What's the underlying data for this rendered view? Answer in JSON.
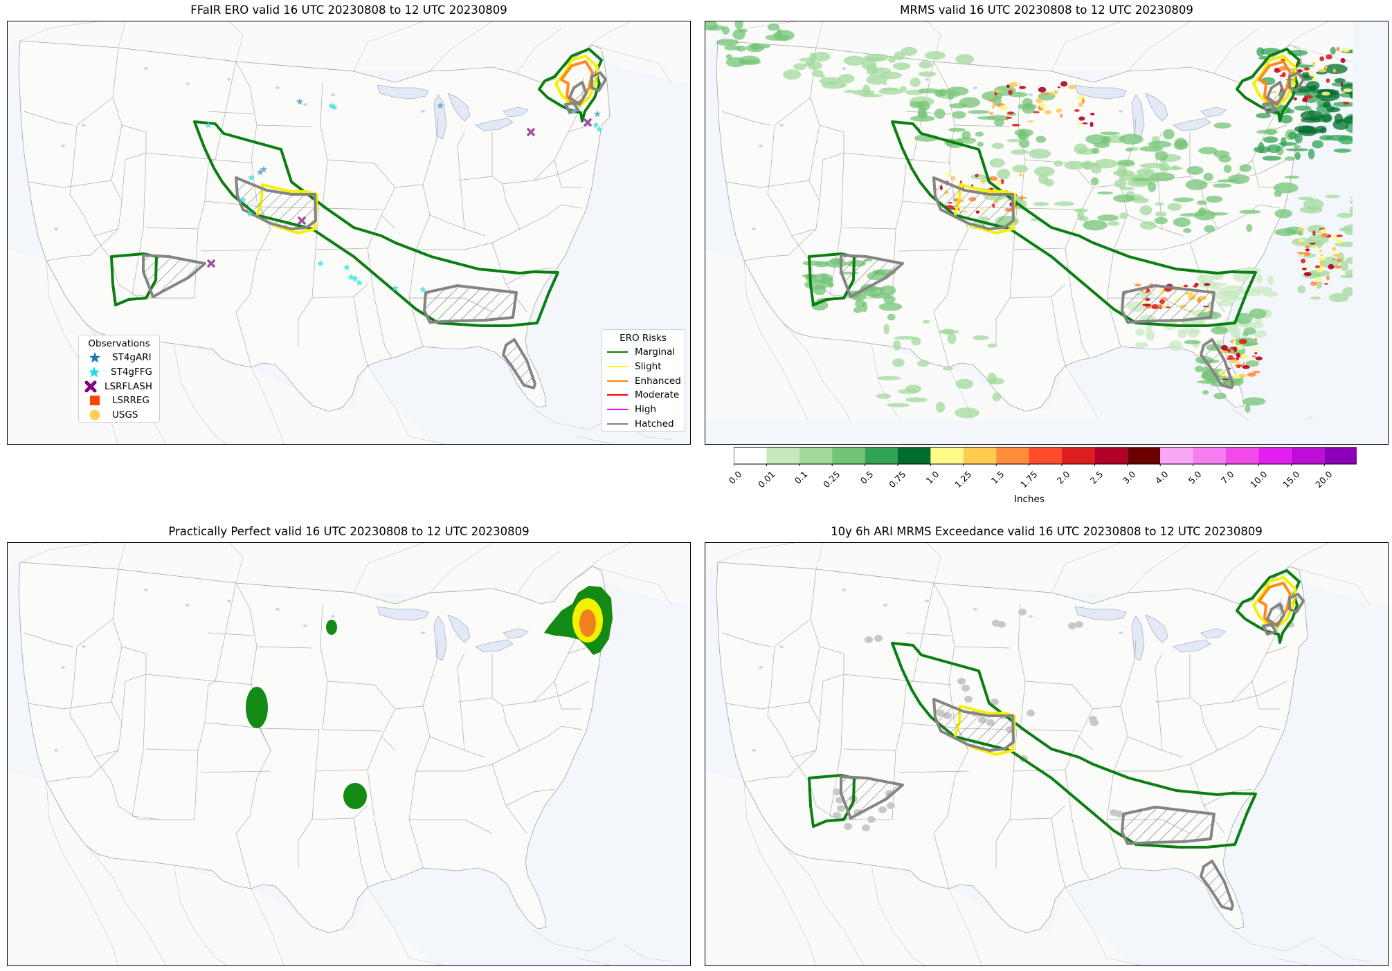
{
  "panels": [
    {
      "id": "ero",
      "title": "FFaIR ERO valid 16 UTC 20230808 to 12 UTC 20230809"
    },
    {
      "id": "mrms",
      "title": "MRMS valid 16 UTC 20230808 to 12 UTC 20230809"
    },
    {
      "id": "pp",
      "title": "Practically Perfect valid 16 UTC 20230808 to 12 UTC 20230809"
    },
    {
      "id": "ari",
      "title": "10y 6h ARI MRMS Exceedance valid 16 UTC 20230808 to 12 UTC 20230809"
    }
  ],
  "observations_legend": {
    "title": "Observations",
    "items": [
      {
        "label": "ST4gARI",
        "symbol": "star",
        "color": "#1f77b4"
      },
      {
        "label": "ST4gFFG",
        "symbol": "star",
        "color": "#17e0e6"
      },
      {
        "label": "LSRFLASH",
        "symbol": "x",
        "color": "#800080"
      },
      {
        "label": "LSRREG",
        "symbol": "square",
        "color": "#ff4500"
      },
      {
        "label": "USGS",
        "symbol": "circle",
        "color": "#ffcc55"
      }
    ]
  },
  "ero_legend": {
    "title": "ERO Risks",
    "items": [
      {
        "label": "Marginal",
        "color": "#008000"
      },
      {
        "label": "Slight",
        "color": "#ffff00"
      },
      {
        "label": "Enhanced",
        "color": "#ff8000"
      },
      {
        "label": "Moderate",
        "color": "#ff0000"
      },
      {
        "label": "High",
        "color": "#ff00ff"
      },
      {
        "label": "Hatched",
        "color": "#808080"
      }
    ]
  },
  "colorbar": {
    "label": "Inches",
    "ticks": [
      "0.0",
      "0.01",
      "0.1",
      "0.25",
      "0.5",
      "0.75",
      "1.0",
      "1.25",
      "1.5",
      "1.75",
      "2.0",
      "2.5",
      "3.0",
      "4.0",
      "5.0",
      "7.0",
      "10.0",
      "15.0",
      "20.0"
    ],
    "colors": [
      "#ffffff",
      "#c7e9c0",
      "#a1d99b",
      "#74c476",
      "#31a354",
      "#006d2c",
      "#fff98a",
      "#ffcc4f",
      "#ff8d3b",
      "#ff4d2b",
      "#dc1e1e",
      "#b00026",
      "#6b0000",
      "#faa8f5",
      "#f57ef0",
      "#f04be8",
      "#e31ef0",
      "#bd0ed8",
      "#8c00b8"
    ],
    "extend_color": "#6a0d9a"
  }
}
